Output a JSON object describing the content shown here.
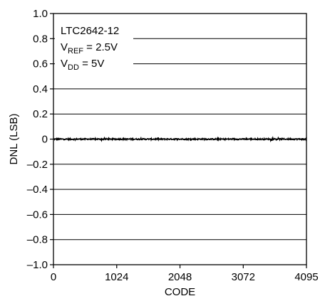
{
  "chart_data": {
    "type": "line",
    "xlabel": "CODE",
    "ylabel": "DNL (LSB)",
    "xlim": [
      0,
      4095
    ],
    "ylim": [
      -1.0,
      1.0
    ],
    "x_ticks": [
      0,
      1024,
      2048,
      3072,
      4095
    ],
    "x_tick_labels": [
      "0",
      "1024",
      "2048",
      "3072",
      "4095"
    ],
    "y_ticks": [
      1.0,
      0.8,
      0.6,
      0.4,
      0.2,
      0,
      -0.2,
      -0.4,
      -0.6,
      -0.8,
      -1.0
    ],
    "y_tick_labels": [
      "1.0",
      "0.8",
      "0.6",
      "0.4",
      "0.2",
      "0",
      "–0.2",
      "–0.4",
      "–0.6",
      "–0.8",
      "–1.0"
    ],
    "grid": "horizontal",
    "annotations": {
      "part": "LTC2642-12",
      "vref_main": "V",
      "vref_sub": "REF",
      "vref_value": " = 2.5V",
      "vdd_main": "V",
      "vdd_sub": "DD",
      "vdd_value": " = 5V"
    },
    "series": [
      {
        "x_start": 0,
        "x_end": 4095,
        "nominal_y": 0,
        "peak_to_peak_y": 0.02
      }
    ]
  }
}
